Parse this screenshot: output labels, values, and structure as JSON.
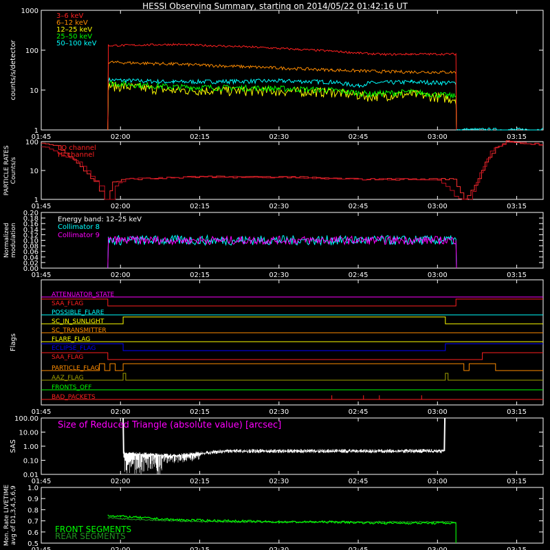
{
  "title": "HESSI Observing Summary, starting on 2014/05/22 01:42:16 UT",
  "colors": {
    "background": "#000000",
    "foreground": "#ffffff",
    "red": "#ff2020",
    "orange": "#ff8c00",
    "yellow": "#ffff00",
    "green": "#00ff00",
    "cyan": "#00ffff",
    "magenta": "#ff00ff",
    "blue": "#0000ff",
    "olive": "#a0a000",
    "dark_green": "#209020"
  },
  "chart_data": [
    {
      "type": "line",
      "ylabel": "counts/s/detector",
      "yscale": "log",
      "xlim": [
        105,
        200
      ],
      "ylim": [
        1,
        1000
      ],
      "x_ticks": [
        "01:45",
        "02:00",
        "02:15",
        "02:30",
        "02:45",
        "03:00",
        "03:15"
      ],
      "y_ticks": [
        "1",
        "10",
        "100",
        "1000"
      ],
      "series": [
        {
          "name": "3–6 keV",
          "color": "red",
          "x": [
            117.6,
            117.7,
            130,
            145,
            160,
            165,
            170,
            175,
            183.5,
            183.6
          ],
          "values": [
            1,
            130,
            140,
            120,
            95,
            85,
            78,
            80,
            80,
            1
          ]
        },
        {
          "name": "6–12 keV",
          "color": "orange",
          "x": [
            117.6,
            117.7,
            130,
            145,
            160,
            170,
            183.5,
            183.6
          ],
          "values": [
            1,
            50,
            45,
            38,
            32,
            29,
            28,
            1
          ]
        },
        {
          "name": "12–25 keV",
          "color": "yellow",
          "x": [
            117.6,
            117.7,
            130,
            150,
            160,
            167,
            175,
            183.5,
            183.6
          ],
          "values": [
            1,
            13,
            10,
            9.5,
            9,
            7,
            8,
            6,
            1
          ]
        },
        {
          "name": "25–50 keV",
          "color": "green",
          "x": [
            117.6,
            117.7,
            130,
            150,
            160,
            167,
            175,
            183.5,
            183.6
          ],
          "values": [
            1,
            15,
            12,
            11,
            10,
            8,
            9,
            7,
            1
          ]
        },
        {
          "name": "50–100 keV",
          "color": "cyan",
          "x": [
            117.6,
            117.7,
            130,
            150,
            160,
            165,
            167,
            175,
            183.5,
            183.6,
            200
          ],
          "values": [
            1,
            18,
            16,
            17,
            16,
            13,
            15,
            16,
            15,
            1,
            1
          ]
        }
      ]
    },
    {
      "type": "line",
      "ylabel": "PARTICLE RATES Counts/s",
      "yscale": "log",
      "xlim": [
        105,
        200
      ],
      "ylim": [
        1,
        100
      ],
      "x_ticks": [
        "01:45",
        "02:00",
        "02:15",
        "02:30",
        "02:45",
        "03:00",
        "03:15"
      ],
      "y_ticks": [
        "1",
        "10",
        "100"
      ],
      "series": [
        {
          "name": "LO channel",
          "color": "red",
          "x": [
            105,
            108,
            111,
            113,
            115,
            116,
            117,
            118,
            118.5,
            121,
            135,
            150,
            165,
            180,
            183,
            185,
            187,
            189,
            191,
            193,
            195,
            197,
            200
          ],
          "values": [
            90,
            70,
            25,
            10,
            4,
            2,
            1,
            2,
            4,
            5,
            6,
            6,
            5,
            5,
            5,
            1,
            3,
            20,
            60,
            100,
            90,
            85,
            80
          ]
        },
        {
          "name": "HI channel",
          "color": "red",
          "x": [
            105,
            112,
            116,
            117,
            118,
            119,
            121,
            135,
            150,
            165,
            180,
            184,
            186,
            188,
            190,
            193,
            196,
            200
          ],
          "values": [
            70,
            20,
            3,
            1,
            1,
            3,
            5,
            6,
            6,
            5,
            5,
            1,
            1,
            8,
            50,
            100,
            90,
            80
          ]
        }
      ]
    },
    {
      "type": "line",
      "ylabel": "Normalized modulation",
      "annotation": "Energy band: 12–25 keV",
      "xlim": [
        105,
        200
      ],
      "ylim": [
        0,
        0.2
      ],
      "x_ticks": [
        "01:45",
        "02:00",
        "02:15",
        "02:30",
        "02:45",
        "03:00",
        "03:15"
      ],
      "y_ticks": [
        "0.00",
        "0.02",
        "0.04",
        "0.06",
        "0.08",
        "0.10",
        "0.12",
        "0.14",
        "0.16",
        "0.18",
        "0.20"
      ],
      "series": [
        {
          "name": "Collimator 8",
          "color": "cyan",
          "x": [
            117.6,
            117.7,
            183.5,
            183.6
          ],
          "values": [
            0,
            0.1,
            0.1,
            0
          ]
        },
        {
          "name": "Collimator 9",
          "color": "magenta",
          "x": [
            117.6,
            117.7,
            183.5,
            183.6
          ],
          "values": [
            0,
            0.1,
            0.1,
            0
          ]
        }
      ]
    },
    {
      "type": "line",
      "ylabel": "Flags",
      "xlim": [
        105,
        200
      ],
      "x_ticks": [
        "01:45",
        "02:00",
        "02:15",
        "02:30",
        "02:45",
        "03:00",
        "03:15"
      ],
      "series": [
        {
          "name": "ATTENUATOR_STATE",
          "color": "magenta",
          "x": [
            105,
            200
          ],
          "values": [
            0,
            0
          ]
        },
        {
          "name": "SAA_FLAG",
          "color": "red",
          "x": [
            105,
            117.6,
            117.6,
            183.5,
            183.5,
            200
          ],
          "values": [
            1,
            1,
            0,
            0,
            1,
            1
          ]
        },
        {
          "name": "POSSIBLE_FLARE",
          "color": "cyan",
          "x": [
            105,
            200
          ],
          "values": [
            0,
            0
          ]
        },
        {
          "name": "SC_IN_SUNLIGHT",
          "color": "yellow",
          "x": [
            105,
            120.5,
            120.5,
            181.5,
            181.5,
            200
          ],
          "values": [
            0,
            0,
            1,
            1,
            0,
            0
          ]
        },
        {
          "name": "SC_TRANSMITTER",
          "color": "orange",
          "x": [
            105,
            200
          ],
          "values": [
            0,
            0
          ]
        },
        {
          "name": "FLARE_FLAG",
          "color": "yellow",
          "x": [
            105,
            200
          ],
          "values": [
            0,
            0
          ]
        },
        {
          "name": "ECLIPSE_FLAG",
          "color": "blue",
          "x": [
            105,
            120.5,
            120.5,
            181.5,
            181.5,
            200
          ],
          "values": [
            1,
            1,
            0,
            0,
            1,
            1
          ]
        },
        {
          "name": "SAA_FLAG",
          "color": "red",
          "x": [
            105,
            117.6,
            117.6,
            188.5,
            188.5,
            200
          ],
          "values": [
            1,
            1,
            0,
            0,
            1,
            1
          ]
        },
        {
          "name": "PARTICLE_FLAG",
          "color": "orange",
          "x": [
            105,
            116,
            116,
            117,
            117,
            118,
            118,
            119,
            119,
            120.5,
            120.5,
            185,
            185,
            186,
            186,
            191,
            191,
            200
          ],
          "values": [
            0,
            0,
            1,
            1,
            0,
            0,
            1,
            1,
            0,
            0,
            1,
            1,
            0,
            0,
            1,
            1,
            0,
            0
          ]
        },
        {
          "name": "AAZ_FLAG",
          "color": "olive",
          "x": [
            105,
            120.5,
            120.5,
            121,
            121,
            181.5,
            181.5,
            182,
            182,
            200
          ],
          "values": [
            0,
            0,
            1,
            1,
            0,
            0,
            1,
            1,
            0,
            0
          ]
        },
        {
          "name": "FRONTS_OFF",
          "color": "green",
          "x": [
            105,
            200
          ],
          "values": [
            0,
            0
          ]
        },
        {
          "name": "BAD_PACKETS",
          "color": "red",
          "x": [
            105,
            200
          ],
          "values": [
            0,
            0
          ],
          "spikes": [
            160,
            166,
            169,
            177
          ]
        }
      ]
    },
    {
      "type": "line",
      "ylabel": "SAS",
      "annotation": "Size of Reduced Triangle (absolute value) [arcsec]",
      "yscale": "log",
      "xlim": [
        105,
        200
      ],
      "ylim": [
        0.01,
        100
      ],
      "x_ticks": [
        "01:45",
        "02:00",
        "02:15",
        "02:30",
        "02:45",
        "03:00",
        "03:15"
      ],
      "y_ticks": [
        "0.01",
        "0.10",
        "1.00",
        "10.00",
        "100.00"
      ],
      "series": [
        {
          "name": "SAS",
          "color": "white",
          "x": [
            120.5,
            120.6,
            130,
            135,
            140,
            150,
            160,
            170,
            181.3,
            181.4
          ],
          "values": [
            100,
            0.3,
            0.2,
            0.3,
            0.45,
            0.45,
            0.45,
            0.45,
            0.45,
            100
          ]
        }
      ]
    },
    {
      "type": "line",
      "ylabel": "Mon. Rate LIVETIME avg of D1,3,4,5,6,9",
      "xlim": [
        105,
        200
      ],
      "ylim": [
        0.5,
        1.0
      ],
      "x_ticks": [
        "01:45",
        "02:00",
        "02:15",
        "02:30",
        "02:45",
        "03:00",
        "03:15"
      ],
      "y_ticks": [
        "0.5",
        "0.6",
        "0.7",
        "0.8",
        "0.9",
        "1.0"
      ],
      "series": [
        {
          "name": "FRONT SEGMENTS",
          "color": "green",
          "x": [
            117.6,
            120,
            130,
            140,
            150,
            160,
            170,
            183.5
          ],
          "values": [
            0.75,
            0.74,
            0.71,
            0.7,
            0.69,
            0.69,
            0.68,
            0.68
          ]
        },
        {
          "name": "REAR SEGMENTS",
          "color": "dark_green",
          "x": [
            117.6,
            120,
            130,
            140,
            150,
            160,
            170,
            183.5
          ],
          "values": [
            0.73,
            0.72,
            0.7,
            0.69,
            0.69,
            0.69,
            0.69,
            0.69
          ]
        }
      ]
    }
  ]
}
